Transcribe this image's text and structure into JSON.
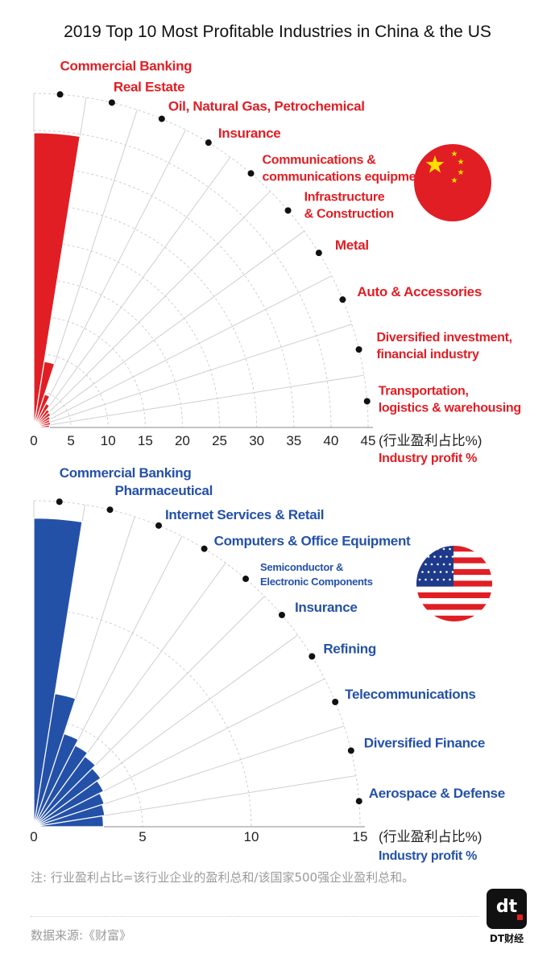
{
  "title": "2019 Top 10 Most Profitable Industries in China & the US",
  "colors": {
    "china": "#e01e24",
    "us": "#2451a8",
    "grid": "#cfcfcf",
    "flag_red": "#e01e24",
    "flag_yellow": "#ffde00",
    "flag_blue": "#1e3a8a"
  },
  "chart_data": [
    {
      "type": "polar-bar",
      "country": "China",
      "categories": [
        "Commercial Banking",
        "Real Estate",
        "Oil, Natural Gas, Petrochemical",
        "Insurance",
        "Communications & communications equipment",
        "Infrastructure & Construction",
        "Metal",
        "Auto & Accessories",
        "Diversified investment, financial industry",
        "Transportation, logistics & warehousing"
      ],
      "label_lines": [
        [
          "Commercial Banking"
        ],
        [
          "Real Estate"
        ],
        [
          "Oil, Natural Gas, Petrochemical"
        ],
        [
          "Insurance"
        ],
        [
          "Communications &",
          "communications equipment"
        ],
        [
          "Infrastructure",
          "& Construction"
        ],
        [
          "Metal"
        ],
        [
          "Auto & Accessories"
        ],
        [
          "Diversified investment,",
          "financial industry"
        ],
        [
          "Transportation,",
          "logistics & warehousing"
        ]
      ],
      "values": [
        39.7,
        9.0,
        4.7,
        3.6,
        3.0,
        2.8,
        2.5,
        2.3,
        2.3,
        2.1
      ],
      "xlabel": "(行业盈利占比%)",
      "xlabel_en": "Industry profit %",
      "ticks": [
        "0",
        "5",
        "10",
        "15",
        "20",
        "25",
        "30",
        "35",
        "40",
        "45"
      ],
      "xlim": [
        0,
        45
      ],
      "grid": true
    },
    {
      "type": "polar-bar",
      "country": "US",
      "categories": [
        "Commercial Banking",
        "Pharmaceutical",
        "Internet Services & Retail",
        "Computers & Office Equipment",
        "Semiconductor & Electronic Components",
        "Insurance",
        "Refining",
        "Telecommunications",
        "Diversified Finance",
        "Aerospace & Defense"
      ],
      "label_lines": [
        [
          "Commercial Banking"
        ],
        [
          "Pharmaceutical"
        ],
        [
          "Internet Services & Retail"
        ],
        [
          "Computers & Office Equipment"
        ],
        [
          "Semiconductor &",
          "Electronic Components"
        ],
        [
          "Insurance"
        ],
        [
          "Refining"
        ],
        [
          "Telecommunications"
        ],
        [
          "Diversified Finance"
        ],
        [
          "Aerospace & Defense"
        ]
      ],
      "values": [
        14.2,
        6.2,
        4.5,
        4.2,
        4.0,
        3.8,
        3.6,
        3.4,
        3.3,
        3.2
      ],
      "xlabel": "(行业盈利占比%)",
      "xlabel_en": "Industry profit %",
      "ticks": [
        "0",
        "5",
        "10",
        "15"
      ],
      "xlim": [
        0,
        15
      ],
      "grid": true
    }
  ],
  "note": "注: 行业盈利占比=该行业企业的盈利总和/该国家500强企业盈利总和。",
  "source": "数据来源:《财富》",
  "logo_text": "dt",
  "logo_caption": "DT财经"
}
